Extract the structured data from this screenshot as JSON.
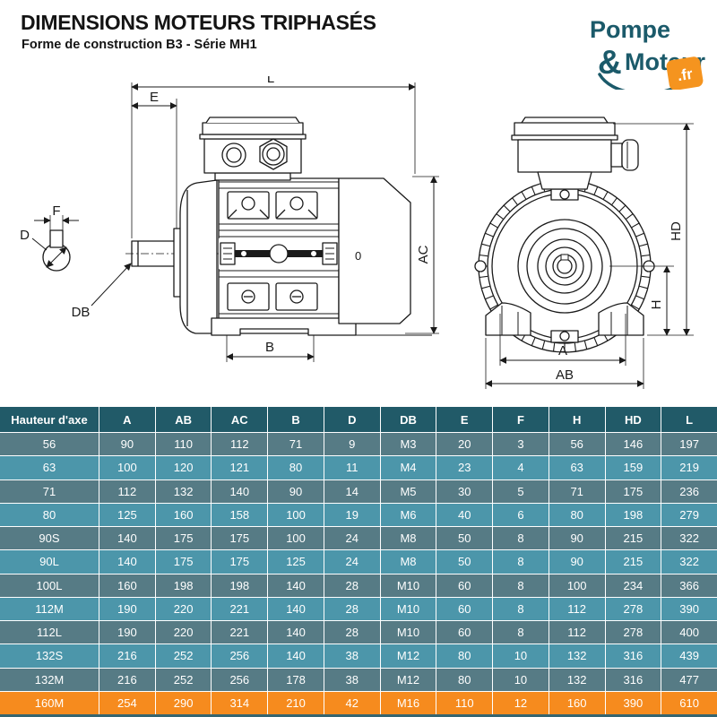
{
  "header": {
    "title": "DIMENSIONS MOTEURS TRIPHASÉS",
    "subtitle": "Forme de construction B3 - Série MH1"
  },
  "logo": {
    "word1": "Pompe",
    "ampersand": "&",
    "word2": "Moteur",
    "tld": ".fr",
    "teal": "#1B5A6A",
    "orange": "#F5941F"
  },
  "diagram": {
    "stroke": "#1a1a1a",
    "labels": {
      "L": "L",
      "E": "E",
      "F": "F",
      "D": "D",
      "DB": "DB",
      "B": "B",
      "AC": "AC",
      "O": "0",
      "HD": "HD",
      "H": "H",
      "A": "A",
      "AB": "AB"
    }
  },
  "table": {
    "columns": [
      "Hauteur d'axe",
      "A",
      "AB",
      "AC",
      "B",
      "D",
      "DB",
      "E",
      "F",
      "H",
      "HD",
      "L"
    ],
    "rows": [
      {
        "axis": "56",
        "values": [
          "90",
          "110",
          "112",
          "71",
          "9",
          "M3",
          "20",
          "3",
          "56",
          "146",
          "197"
        ],
        "highlight": false
      },
      {
        "axis": "63",
        "values": [
          "100",
          "120",
          "121",
          "80",
          "11",
          "M4",
          "23",
          "4",
          "63",
          "159",
          "219"
        ],
        "highlight": false
      },
      {
        "axis": "71",
        "values": [
          "112",
          "132",
          "140",
          "90",
          "14",
          "M5",
          "30",
          "5",
          "71",
          "175",
          "236"
        ],
        "highlight": false
      },
      {
        "axis": "80",
        "values": [
          "125",
          "160",
          "158",
          "100",
          "19",
          "M6",
          "40",
          "6",
          "80",
          "198",
          "279"
        ],
        "highlight": false
      },
      {
        "axis": "90S",
        "values": [
          "140",
          "175",
          "175",
          "100",
          "24",
          "M8",
          "50",
          "8",
          "90",
          "215",
          "322"
        ],
        "highlight": false
      },
      {
        "axis": "90L",
        "values": [
          "140",
          "175",
          "175",
          "125",
          "24",
          "M8",
          "50",
          "8",
          "90",
          "215",
          "322"
        ],
        "highlight": false
      },
      {
        "axis": "100L",
        "values": [
          "160",
          "198",
          "198",
          "140",
          "28",
          "M10",
          "60",
          "8",
          "100",
          "234",
          "366"
        ],
        "highlight": false
      },
      {
        "axis": "112M",
        "values": [
          "190",
          "220",
          "221",
          "140",
          "28",
          "M10",
          "60",
          "8",
          "112",
          "278",
          "390"
        ],
        "highlight": false
      },
      {
        "axis": "112L",
        "values": [
          "190",
          "220",
          "221",
          "140",
          "28",
          "M10",
          "60",
          "8",
          "112",
          "278",
          "400"
        ],
        "highlight": false
      },
      {
        "axis": "132S",
        "values": [
          "216",
          "252",
          "256",
          "140",
          "38",
          "M12",
          "80",
          "10",
          "132",
          "316",
          "439"
        ],
        "highlight": false
      },
      {
        "axis": "132M",
        "values": [
          "216",
          "252",
          "256",
          "178",
          "38",
          "M12",
          "80",
          "10",
          "132",
          "316",
          "477"
        ],
        "highlight": false
      },
      {
        "axis": "160M",
        "values": [
          "254",
          "290",
          "314",
          "210",
          "42",
          "M16",
          "110",
          "12",
          "160",
          "390",
          "610"
        ],
        "highlight": true
      }
    ],
    "colors": {
      "header_bg": "#215A68",
      "row_dark": "#567B85",
      "row_light": "#4C96AA",
      "highlight": "#F68B1E",
      "text": "#FFFFFF"
    }
  }
}
